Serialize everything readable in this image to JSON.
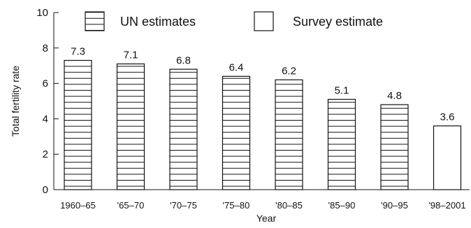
{
  "chart_data": {
    "type": "bar",
    "categories": [
      "1960–65",
      "'65–70",
      "'70–75",
      "'75–80",
      "'80–85",
      "'85–90",
      "'90–95",
      "'98–2001"
    ],
    "values": [
      7.3,
      7.1,
      6.8,
      6.4,
      6.2,
      5.1,
      4.8,
      3.6
    ],
    "value_labels": [
      "7.3",
      "7.1",
      "6.8",
      "6.4",
      "6.2",
      "5.1",
      "4.8",
      "3.6"
    ],
    "source": [
      "UN estimates",
      "UN estimates",
      "UN estimates",
      "UN estimates",
      "UN estimates",
      "UN estimates",
      "UN estimates",
      "Survey estimate"
    ],
    "xlabel": "Year",
    "ylabel": "Total fertility rate",
    "ylim": [
      0,
      10
    ],
    "yticks": [
      "0",
      "2",
      "4",
      "6",
      "8",
      "10"
    ],
    "grid": false,
    "legend": {
      "placement": "top",
      "entries": [
        {
          "label": "UN estimates",
          "fill": "hatched"
        },
        {
          "label": "Survey estimate",
          "fill": "open"
        }
      ]
    }
  }
}
